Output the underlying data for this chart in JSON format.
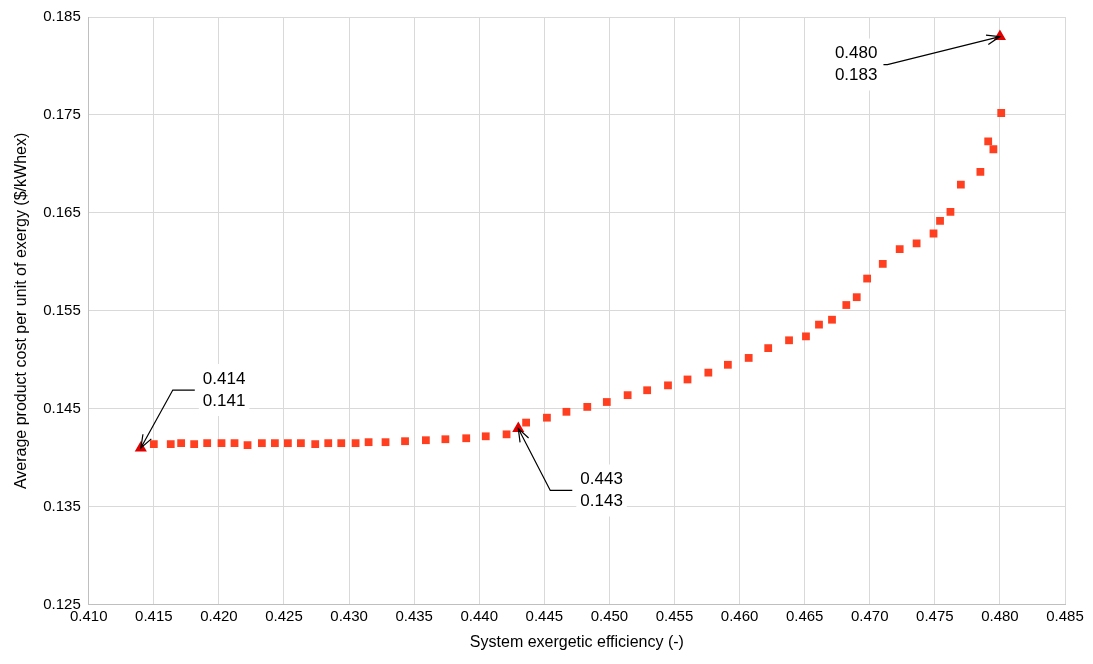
{
  "chart_data": {
    "type": "scatter",
    "xlabel": "System exergetic efficiency (-)",
    "ylabel": "Average product cost per unit of exergy ($/kWhex)",
    "xlim": [
      0.41,
      0.485
    ],
    "xticks": [
      {
        "value": 0.41,
        "label": "0.410"
      },
      {
        "value": 0.415,
        "label": "0.415"
      },
      {
        "value": 0.42,
        "label": "0.420"
      },
      {
        "value": 0.425,
        "label": "0.425"
      },
      {
        "value": 0.43,
        "label": "0.430"
      },
      {
        "value": 0.435,
        "label": "0.435"
      },
      {
        "value": 0.44,
        "label": "0.440"
      },
      {
        "value": 0.445,
        "label": "0.445"
      },
      {
        "value": 0.45,
        "label": "0.450"
      },
      {
        "value": 0.455,
        "label": "0.455"
      },
      {
        "value": 0.46,
        "label": "0.460"
      },
      {
        "value": 0.465,
        "label": "0.465"
      },
      {
        "value": 0.47,
        "label": "0.470"
      },
      {
        "value": 0.475,
        "label": "0.475"
      },
      {
        "value": 0.48,
        "label": "0.480"
      },
      {
        "value": 0.485,
        "label": "0.485"
      }
    ],
    "ylim": [
      0.125,
      0.185
    ],
    "yticks": [
      0.125,
      0.135,
      0.145,
      0.155,
      0.165,
      0.175,
      0.185
    ],
    "grid": true,
    "legend": false,
    "series": [
      {
        "color": "#ff3f1f",
        "marker": "square",
        "x": [
          0.415,
          0.4163,
          0.4171,
          0.4181,
          0.4191,
          0.4202,
          0.4212,
          0.4222,
          0.4233,
          0.4243,
          0.4253,
          0.4263,
          0.4274,
          0.4284,
          0.4294,
          0.4305,
          0.4315,
          0.4328,
          0.4343,
          0.4359,
          0.4374,
          0.439,
          0.4405,
          0.4421,
          0.4436,
          0.4452,
          0.4467,
          0.4483,
          0.4498,
          0.4514,
          0.4529,
          0.4545,
          0.456,
          0.4576,
          0.4591,
          0.4607,
          0.4622,
          0.4638,
          0.4651,
          0.4661,
          0.4671,
          0.4682,
          0.469,
          0.4698,
          0.471,
          0.4723,
          0.4736,
          0.4749,
          0.4754,
          0.4762,
          0.477,
          0.4785,
          0.4791,
          0.4795,
          0.4801
        ],
        "values": [
          0.1414,
          0.1414,
          0.1415,
          0.1414,
          0.1415,
          0.1415,
          0.1415,
          0.1413,
          0.1415,
          0.1415,
          0.1415,
          0.1415,
          0.1414,
          0.1415,
          0.1415,
          0.1415,
          0.1416,
          0.1416,
          0.1417,
          0.1418,
          0.1419,
          0.142,
          0.1422,
          0.1424,
          0.1436,
          0.1441,
          0.1447,
          0.1452,
          0.1457,
          0.1464,
          0.1469,
          0.1474,
          0.148,
          0.1487,
          0.1495,
          0.1502,
          0.1512,
          0.152,
          0.1524,
          0.1536,
          0.1541,
          0.1556,
          0.1564,
          0.1583,
          0.1598,
          0.1613,
          0.1619,
          0.1629,
          0.1642,
          0.1651,
          0.1679,
          0.1692,
          0.1723,
          0.1715,
          0.1752
        ]
      },
      {
        "color": "#e00000",
        "marker": "triangle",
        "x": [
          0.414,
          0.443,
          0.48
        ],
        "values": [
          0.141,
          0.143,
          0.183
        ]
      }
    ],
    "annotations": [
      {
        "text": "0.414\n0.141",
        "x": 0.414,
        "y": 0.141
      },
      {
        "text": "0.443\n0.143",
        "x": 0.443,
        "y": 0.143
      },
      {
        "text": "0.480\n0.183",
        "x": 0.48,
        "y": 0.183
      }
    ]
  }
}
